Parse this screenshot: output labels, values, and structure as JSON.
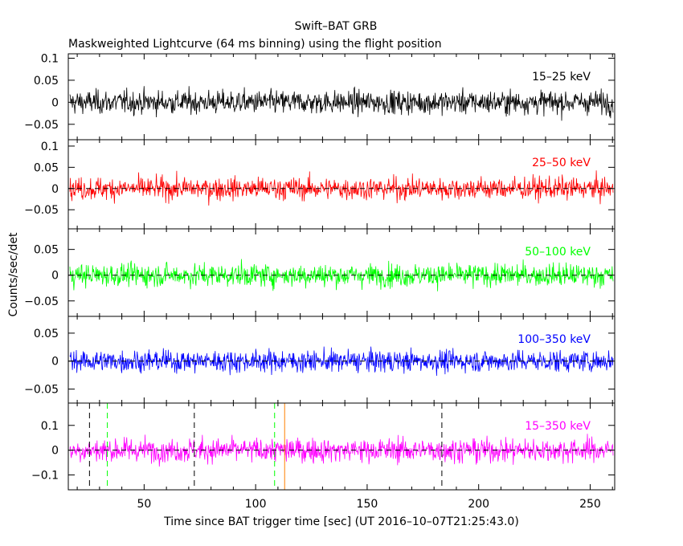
{
  "chart_data": {
    "type": "line",
    "title": "Swift–BAT GRB",
    "subtitle": "Maskweighted Lightcurve (64 ms binning) using the flight position",
    "xlabel": "Time since BAT trigger time [sec] (UT 2016–10–07T21:25:43.0)",
    "ylabel": "Counts/sec/det",
    "xlim": [
      16,
      261
    ],
    "x_ticks": [
      50,
      100,
      150,
      200,
      250
    ],
    "x_tick_labels": [
      "50",
      "100",
      "150",
      "200",
      "250"
    ],
    "grid": false,
    "panels": [
      {
        "band": "15–25 keV",
        "color": "#000000",
        "ylim": [
          -0.085,
          0.11
        ],
        "y_ticks": [
          -0.05,
          0,
          0.05,
          0.1
        ],
        "y_tick_labels": [
          "−0.05",
          "0",
          "0.05",
          "0.1"
        ],
        "noise_amplitude": 0.03,
        "zero_line": false
      },
      {
        "band": "25–50 keV",
        "color": "#ff0000",
        "ylim": [
          -0.095,
          0.115
        ],
        "y_ticks": [
          -0.05,
          0,
          0.05,
          0.1
        ],
        "y_tick_labels": [
          "−0.05",
          "0",
          "0.05",
          "0.1"
        ],
        "noise_amplitude": 0.03,
        "zero_line": true
      },
      {
        "band": "50–100 keV",
        "color": "#00ff00",
        "ylim": [
          -0.08,
          0.09
        ],
        "y_ticks": [
          -0.05,
          0,
          0.05
        ],
        "y_tick_labels": [
          "−0.05",
          "0",
          "0.05"
        ],
        "noise_amplitude": 0.025,
        "zero_line": true
      },
      {
        "band": "100–350 keV",
        "color": "#0000ff",
        "ylim": [
          -0.075,
          0.08
        ],
        "y_ticks": [
          -0.05,
          0,
          0.05
        ],
        "y_tick_labels": [
          "−0.05",
          "0",
          "0.05"
        ],
        "noise_amplitude": 0.022,
        "zero_line": true
      },
      {
        "band": "15–350 keV",
        "color": "#ff00ff",
        "ylim": [
          -0.16,
          0.19
        ],
        "y_ticks": [
          -0.1,
          0,
          0.1
        ],
        "y_tick_labels": [
          "−0.1",
          "0",
          "0.1"
        ],
        "noise_amplitude": 0.055,
        "zero_line": true,
        "markers": [
          {
            "x": 25.5,
            "color": "#000000",
            "style": "dashed"
          },
          {
            "x": 33.5,
            "color": "#00ff00",
            "style": "dashed"
          },
          {
            "x": 108.5,
            "color": "#00ff00",
            "style": "dashed"
          },
          {
            "x": 72.5,
            "color": "#000000",
            "style": "dashed"
          },
          {
            "x": 113.0,
            "color": "#ff8000",
            "style": "solid"
          },
          {
            "x": 183.5,
            "color": "#000000",
            "style": "dashed"
          }
        ]
      }
    ]
  }
}
